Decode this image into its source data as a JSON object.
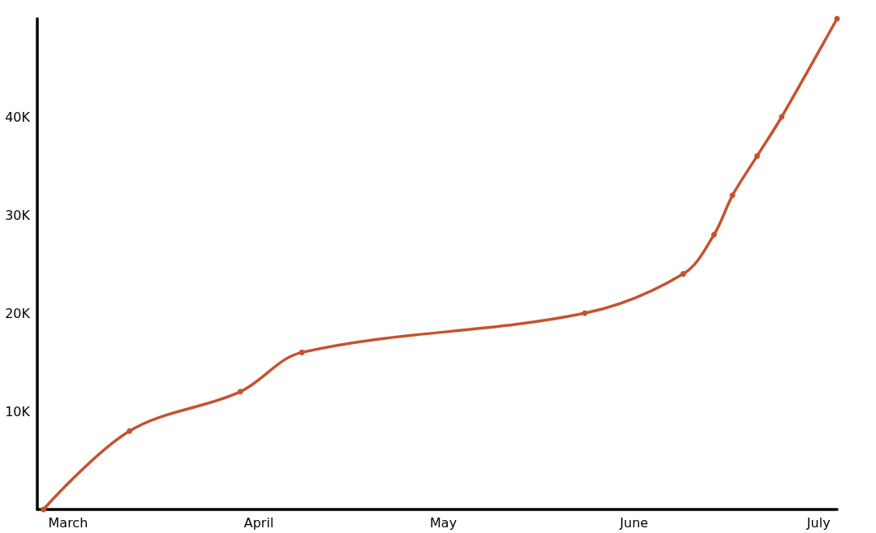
{
  "chart_data": {
    "type": "line",
    "x": [
      "--02-25",
      "--03-11",
      "--03-29",
      "--04-08",
      "--05-24",
      "--06-09",
      "--06-14",
      "--06-17",
      "--06-21",
      "--06-25",
      "--07-04"
    ],
    "values": [
      0,
      8000,
      12000,
      16000,
      20000,
      24000,
      28000,
      32000,
      36000,
      40000,
      50000
    ],
    "color": "#c6522f",
    "xlim": [
      "--02-24",
      "--07-04"
    ],
    "xticks": [
      {
        "value": "--03-01",
        "label": "March"
      },
      {
        "value": "--04-01",
        "label": "April"
      },
      {
        "value": "--05-01",
        "label": "May"
      },
      {
        "value": "--06-01",
        "label": "June"
      },
      {
        "value": "--07-01",
        "label": "July"
      }
    ],
    "ylim": [
      0,
      50000
    ],
    "yticks": [
      {
        "value": 10000,
        "label": "10K"
      },
      {
        "value": 20000,
        "label": "20K"
      },
      {
        "value": 30000,
        "label": "30K"
      },
      {
        "value": 40000,
        "label": "40K"
      }
    ],
    "grid": false,
    "marker": "circle",
    "line_style": "solid"
  }
}
